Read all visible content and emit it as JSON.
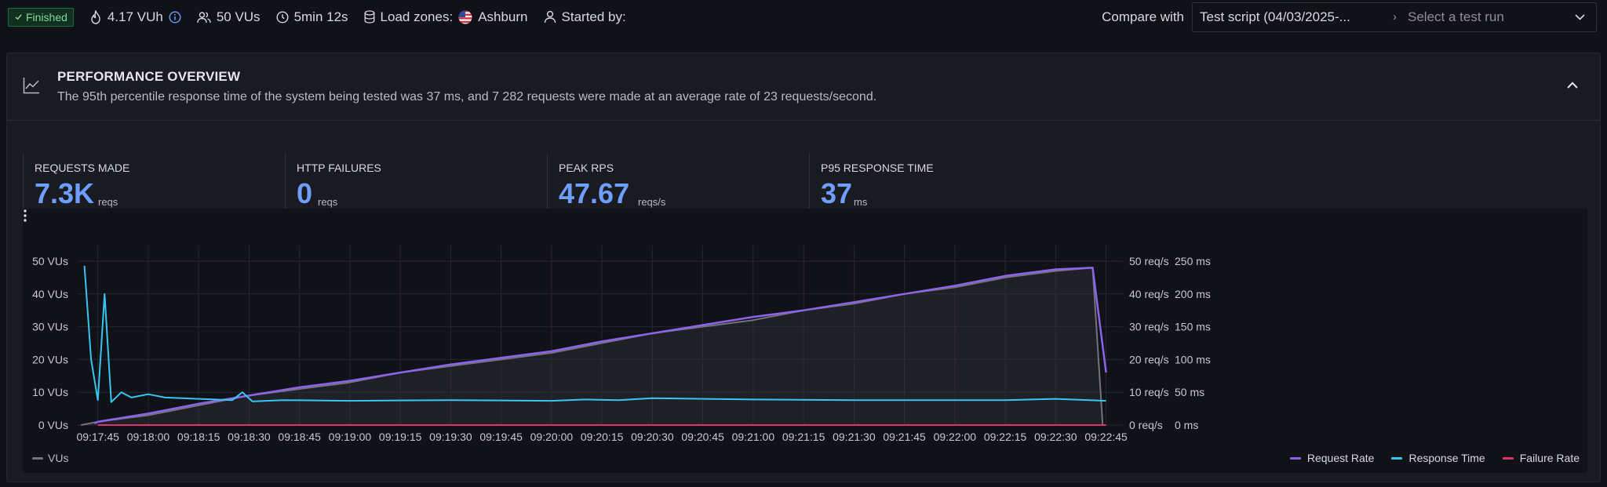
{
  "top": {
    "status": "Finished",
    "vuh": "4.17 VUh",
    "vus": "50 VUs",
    "duration": "5min 12s",
    "load_zones_label": "Load zones:",
    "load_zone": "Ashburn",
    "started_by": "Started by:"
  },
  "compare": {
    "label": "Compare with",
    "script": "Test script (04/03/2025-...",
    "separator": "›",
    "placeholder": "Select a test run"
  },
  "overview": {
    "title": "PERFORMANCE OVERVIEW",
    "summary": "The 95th percentile response time of the system being tested was 37 ms, and 7 282 requests were made at an average rate of 23 requests/second."
  },
  "stats": [
    {
      "label": "REQUESTS MADE",
      "value": "7.3K",
      "unit": "reqs"
    },
    {
      "label": "HTTP FAILURES",
      "value": "0",
      "unit": "reqs"
    },
    {
      "label": "PEAK RPS",
      "value": "47.67",
      "unit": "reqs/s"
    },
    {
      "label": "P95 RESPONSE TIME",
      "value": "37",
      "unit": "ms"
    }
  ],
  "colors": {
    "accent": "#6e9fff",
    "vus": "#73737b",
    "request_rate": "#8c63ea",
    "response_time": "#37c6f4",
    "failure_rate": "#e0326e"
  },
  "legend": {
    "vus": "VUs",
    "request_rate": "Request Rate",
    "response_time": "Response Time",
    "failure_rate": "Failure Rate"
  },
  "chart_data": {
    "type": "line",
    "x_ticks": [
      "09:17:45",
      "09:18:00",
      "09:18:15",
      "09:18:30",
      "09:18:45",
      "09:19:00",
      "09:19:15",
      "09:19:30",
      "09:19:45",
      "09:20:00",
      "09:20:15",
      "09:20:30",
      "09:20:45",
      "09:21:00",
      "09:21:15",
      "09:21:30",
      "09:21:45",
      "09:22:00",
      "09:22:15",
      "09:22:30",
      "09:22:45"
    ],
    "y_left_ticks": [
      "0 VUs",
      "10 VUs",
      "20 VUs",
      "30 VUs",
      "40 VUs",
      "50 VUs"
    ],
    "y_right1_ticks": [
      "0 req/s",
      "10 req/s",
      "20 req/s",
      "30 req/s",
      "40 req/s",
      "50 req/s"
    ],
    "y_right2_ticks": [
      "0 ms",
      "50 ms",
      "100 ms",
      "150 ms",
      "200 ms",
      "250 ms"
    ],
    "x_range": [
      "09:17:39",
      "09:22:50"
    ],
    "ylim_vus": [
      0,
      50
    ],
    "ylim_req_rate": [
      0,
      50
    ],
    "ylim_response_ms": [
      0,
      250
    ],
    "grid": true,
    "legend_position": "bottom",
    "series": [
      {
        "name": "VUs",
        "axis": "left",
        "x": [
          "09:17:40",
          "09:17:45",
          "09:18:00",
          "09:18:15",
          "09:18:30",
          "09:18:45",
          "09:19:00",
          "09:19:15",
          "09:19:30",
          "09:19:45",
          "09:20:00",
          "09:20:15",
          "09:20:30",
          "09:20:45",
          "09:21:00",
          "09:21:15",
          "09:21:30",
          "09:21:45",
          "09:22:00",
          "09:22:15",
          "09:22:30",
          "09:22:41",
          "09:22:44"
        ],
        "values": [
          0,
          1,
          3,
          6,
          9,
          11,
          13,
          16,
          18,
          20,
          22,
          25,
          28,
          30,
          32,
          35,
          37,
          40,
          42,
          45,
          47,
          48,
          0
        ]
      },
      {
        "name": "Request Rate",
        "axis": "right1",
        "x": [
          "09:17:44",
          "09:17:45",
          "09:18:00",
          "09:18:15",
          "09:18:30",
          "09:18:45",
          "09:19:00",
          "09:19:15",
          "09:19:30",
          "09:19:45",
          "09:20:00",
          "09:20:15",
          "09:20:30",
          "09:20:45",
          "09:21:00",
          "09:21:15",
          "09:21:30",
          "09:21:45",
          "09:22:00",
          "09:22:15",
          "09:22:30",
          "09:22:41",
          "09:22:45"
        ],
        "values": [
          0.5,
          1,
          3.5,
          6.5,
          9,
          11.5,
          13.5,
          16,
          18.5,
          20.5,
          22.5,
          25.5,
          28,
          30.5,
          33,
          35,
          37.5,
          40,
          42.5,
          45.5,
          47.5,
          48,
          16
        ]
      },
      {
        "name": "Response Time",
        "axis": "right2",
        "x": [
          "09:17:41",
          "09:17:43",
          "09:17:45",
          "09:17:47",
          "09:17:49",
          "09:17:52",
          "09:17:55",
          "09:18:00",
          "09:18:05",
          "09:18:15",
          "09:18:25",
          "09:18:28",
          "09:18:31",
          "09:18:40",
          "09:19:00",
          "09:19:30",
          "09:20:00",
          "09:20:10",
          "09:20:20",
          "09:20:30",
          "09:21:00",
          "09:21:30",
          "09:22:00",
          "09:22:15",
          "09:22:30",
          "09:22:45"
        ],
        "values": [
          243,
          100,
          38,
          200,
          35,
          50,
          42,
          47,
          42,
          40,
          38,
          50,
          36,
          38,
          37,
          38,
          37,
          39,
          38,
          41,
          39,
          38,
          38,
          38,
          40,
          37
        ]
      },
      {
        "name": "Failure Rate",
        "axis": "right1",
        "x": [
          "09:17:45",
          "09:22:45"
        ],
        "values": [
          0,
          0
        ]
      }
    ]
  }
}
